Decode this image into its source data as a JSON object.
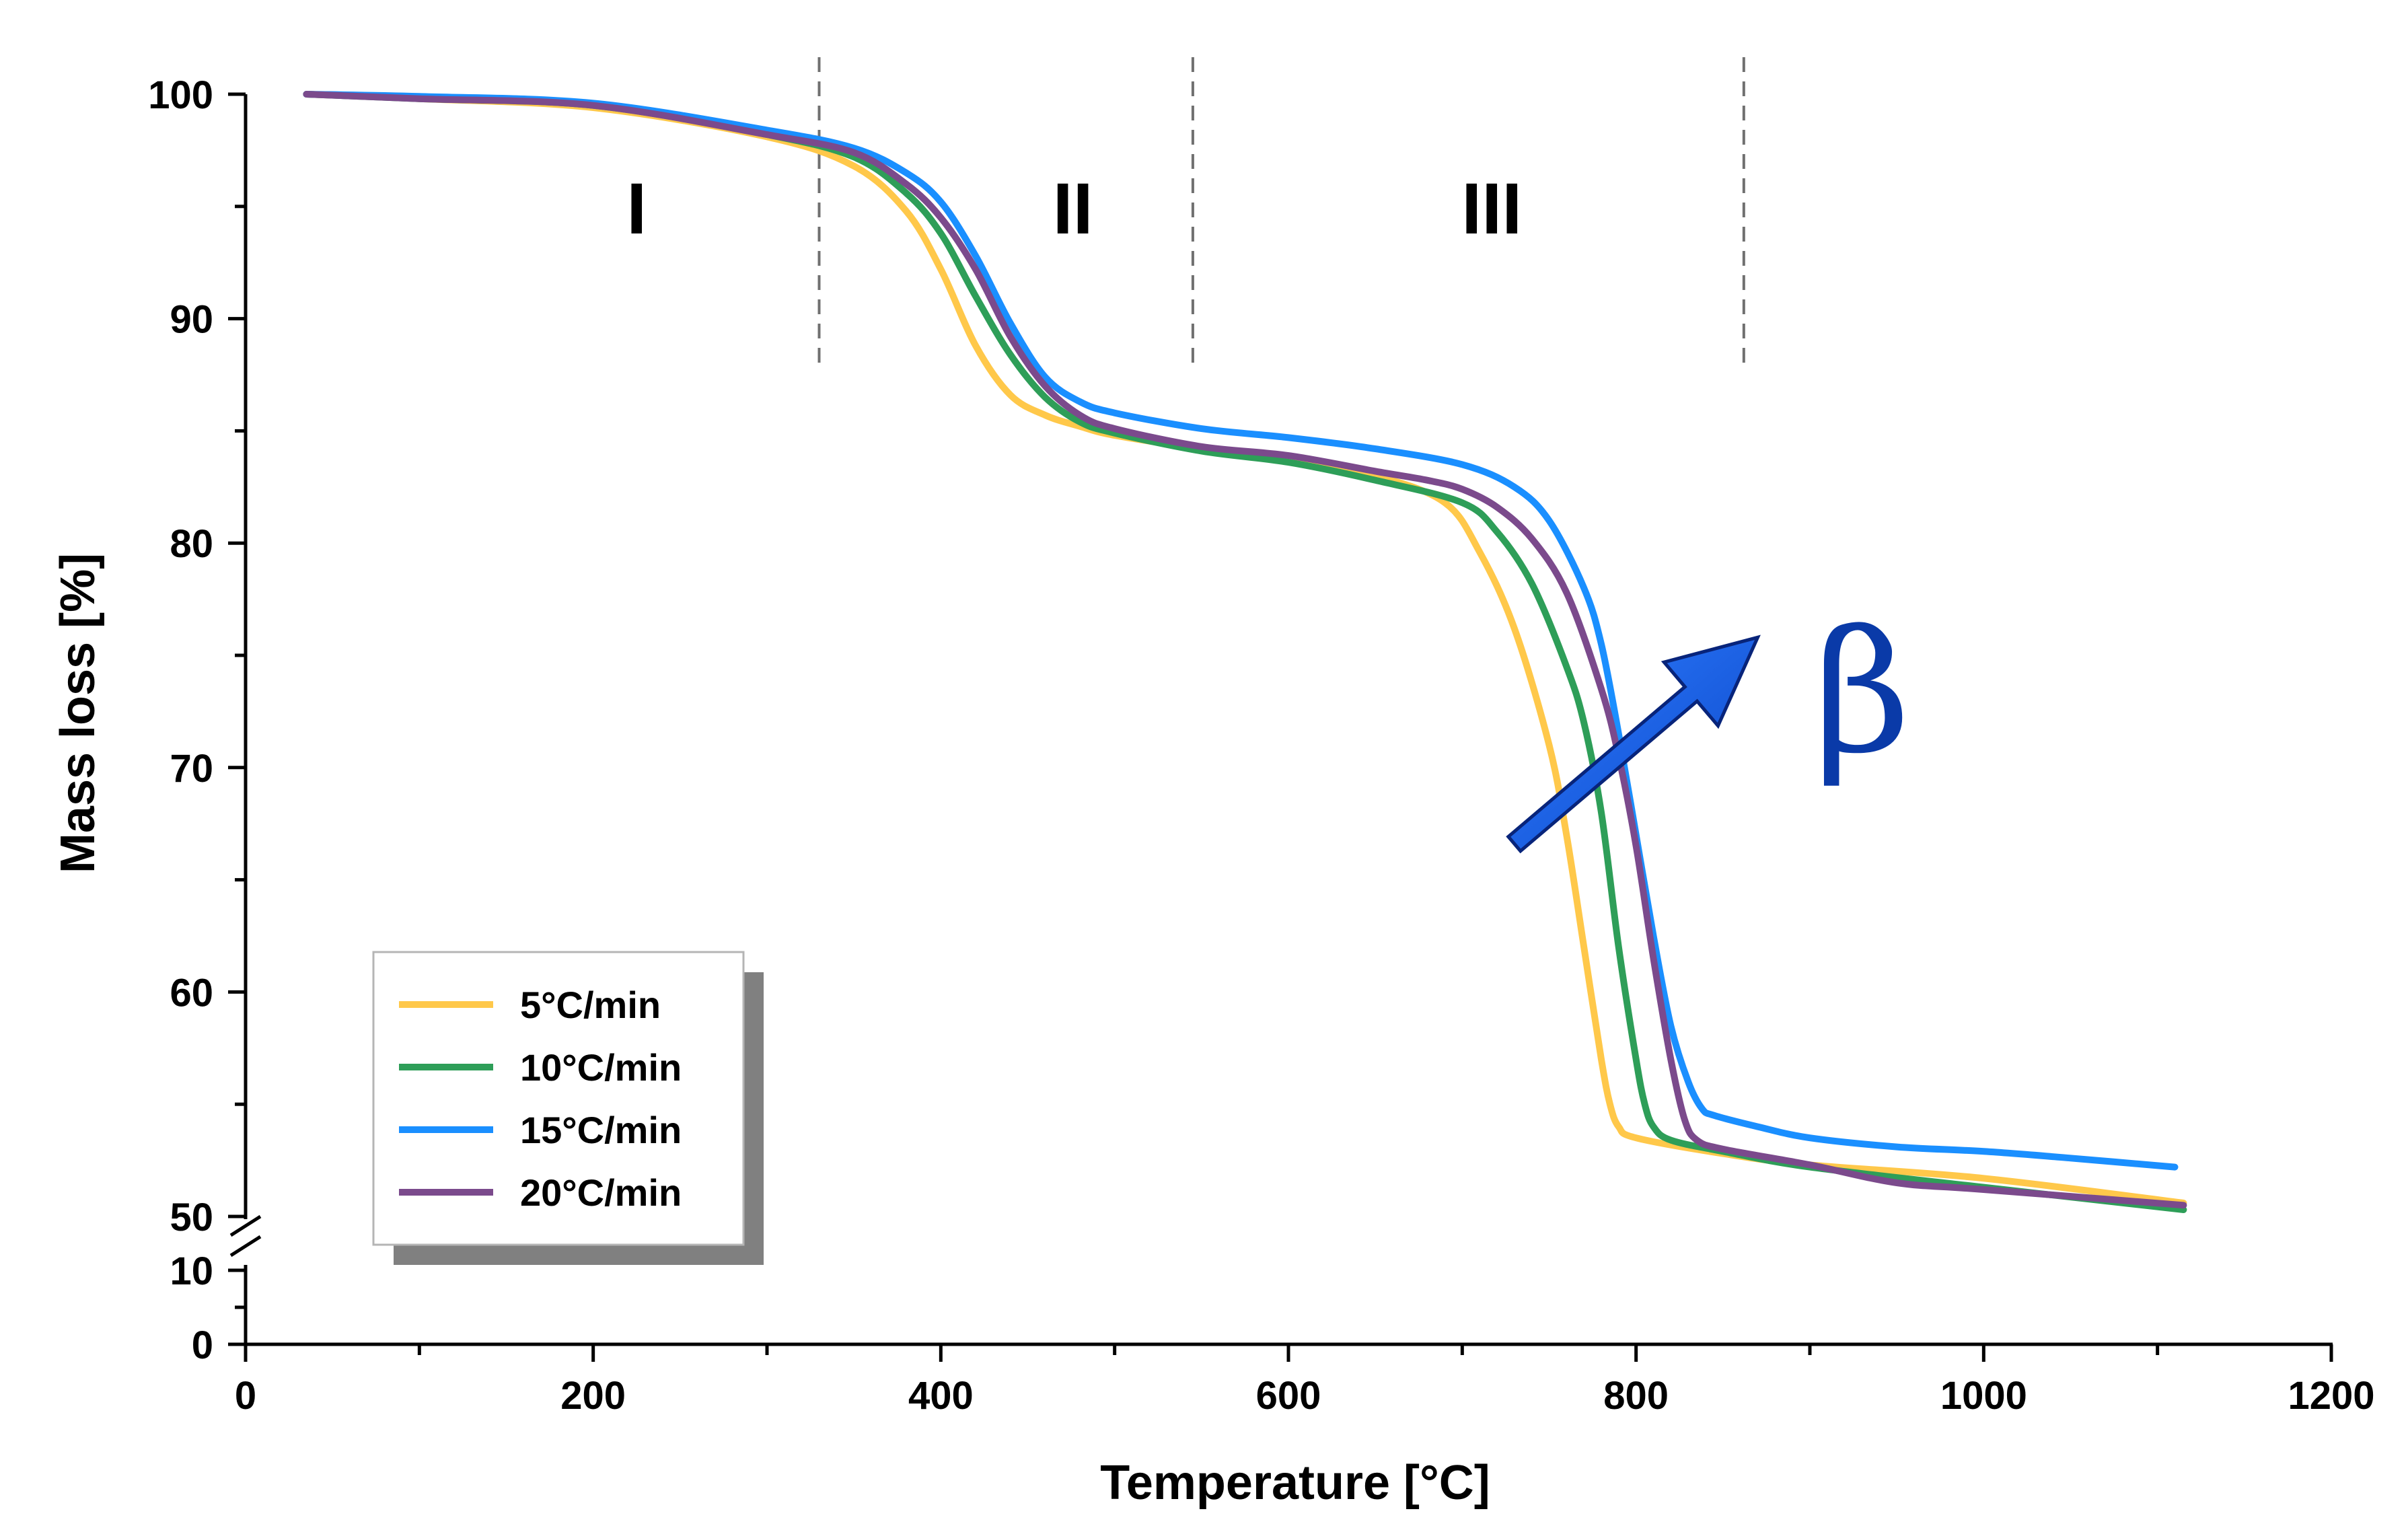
{
  "chart_data": {
    "type": "line",
    "title": "",
    "xlabel": "Temperature [°C]",
    "ylabel": "Mass loss [%]",
    "xlim": [
      0,
      1200
    ],
    "x_ticks": [
      {
        "value": 0,
        "label": "0"
      },
      {
        "value": 200,
        "label": "200"
      },
      {
        "value": 400,
        "label": "400"
      },
      {
        "value": 600,
        "label": "600"
      },
      {
        "value": 800,
        "label": "800"
      },
      {
        "value": 1000,
        "label": "1000"
      },
      {
        "value": 1200,
        "label": "1200"
      }
    ],
    "y_upper_range": [
      50,
      100
    ],
    "y_lower_range": [
      0,
      10
    ],
    "y_ticks": [
      {
        "value": 0,
        "label": "0"
      },
      {
        "value": 10,
        "label": "10"
      },
      {
        "value": 50,
        "label": "50"
      },
      {
        "value": 60,
        "label": "60"
      },
      {
        "value": 70,
        "label": "70"
      },
      {
        "value": 80,
        "label": "80"
      },
      {
        "value": 90,
        "label": "90"
      },
      {
        "value": 100,
        "label": "100"
      }
    ],
    "region_boundaries": [
      330,
      545,
      862
    ],
    "regions": [
      {
        "label": "I",
        "x": 225,
        "y": 95
      },
      {
        "label": "II",
        "x": 476,
        "y": 95
      },
      {
        "label": "III",
        "x": 717,
        "y": 95
      }
    ],
    "annotation": {
      "text": "β",
      "arrow_from": [
        730,
        66.6
      ],
      "arrow_to": [
        870,
        75.8
      ],
      "label_x": 930,
      "label_y": 73,
      "color": "#0a3aa8"
    },
    "legend_position": "lower-left",
    "series": [
      {
        "name": "5°C/min",
        "color": "#FFC84A",
        "x": [
          35,
          100,
          200,
          300,
          350,
          380,
          400,
          420,
          440,
          460,
          480,
          500,
          550,
          600,
          650,
          690,
          710,
          730,
          750,
          760,
          770,
          780,
          785,
          790,
          800,
          850,
          900,
          1000,
          1115
        ],
        "y": [
          100,
          99.8,
          99.4,
          98.1,
          96.8,
          94.8,
          92.2,
          88.8,
          86.6,
          85.7,
          85.2,
          84.8,
          84.2,
          83.7,
          83.0,
          81.8,
          79.6,
          76.2,
          71.0,
          67.0,
          62.0,
          57.0,
          55.0,
          54.0,
          53.5,
          52.8,
          52.3,
          51.7,
          50.6
        ]
      },
      {
        "name": "10°C/min",
        "color": "#2E9E58",
        "x": [
          35,
          100,
          200,
          300,
          350,
          380,
          400,
          420,
          440,
          460,
          480,
          500,
          550,
          600,
          650,
          700,
          720,
          740,
          760,
          770,
          780,
          790,
          800,
          805,
          810,
          820,
          850,
          900,
          1000,
          1115
        ],
        "y": [
          100,
          99.8,
          99.5,
          98.2,
          97.2,
          95.6,
          93.8,
          91.0,
          88.4,
          86.5,
          85.4,
          84.9,
          84.1,
          83.6,
          82.8,
          81.8,
          80.5,
          78.2,
          74.5,
          72.0,
          68.0,
          62.0,
          57.0,
          55.0,
          54.0,
          53.4,
          52.9,
          52.2,
          51.3,
          50.3
        ]
      },
      {
        "name": "15°C/min",
        "color": "#1A8FFF",
        "x": [
          35,
          100,
          200,
          300,
          350,
          380,
          400,
          420,
          440,
          460,
          480,
          500,
          550,
          600,
          650,
          700,
          730,
          750,
          770,
          780,
          790,
          800,
          810,
          820,
          830,
          838,
          845,
          870,
          900,
          950,
          1000,
          1050,
          1110
        ],
        "y": [
          100,
          99.9,
          99.6,
          98.4,
          97.6,
          96.5,
          95.2,
          92.8,
          89.8,
          87.4,
          86.3,
          85.8,
          85.1,
          84.7,
          84.2,
          83.5,
          82.5,
          81.0,
          78.0,
          75.5,
          71.5,
          67.0,
          62.5,
          58.5,
          56.0,
          54.8,
          54.5,
          54.0,
          53.5,
          53.1,
          52.9,
          52.6,
          52.2
        ]
      },
      {
        "name": "20°C/min",
        "color": "#7B4A8C",
        "x": [
          35,
          100,
          200,
          300,
          350,
          380,
          400,
          420,
          440,
          460,
          480,
          500,
          550,
          600,
          650,
          680,
          700,
          720,
          740,
          760,
          780,
          790,
          800,
          810,
          820,
          828,
          835,
          850,
          900,
          950,
          1000,
          1115
        ],
        "y": [
          100,
          99.8,
          99.5,
          98.2,
          97.4,
          96.0,
          94.5,
          92.2,
          89.2,
          87.0,
          85.7,
          85.1,
          84.3,
          83.9,
          83.2,
          82.8,
          82.4,
          81.6,
          80.2,
          77.8,
          73.5,
          70.5,
          66.5,
          61.5,
          57.0,
          54.3,
          53.4,
          53.0,
          52.3,
          51.5,
          51.2,
          50.5
        ]
      }
    ]
  }
}
